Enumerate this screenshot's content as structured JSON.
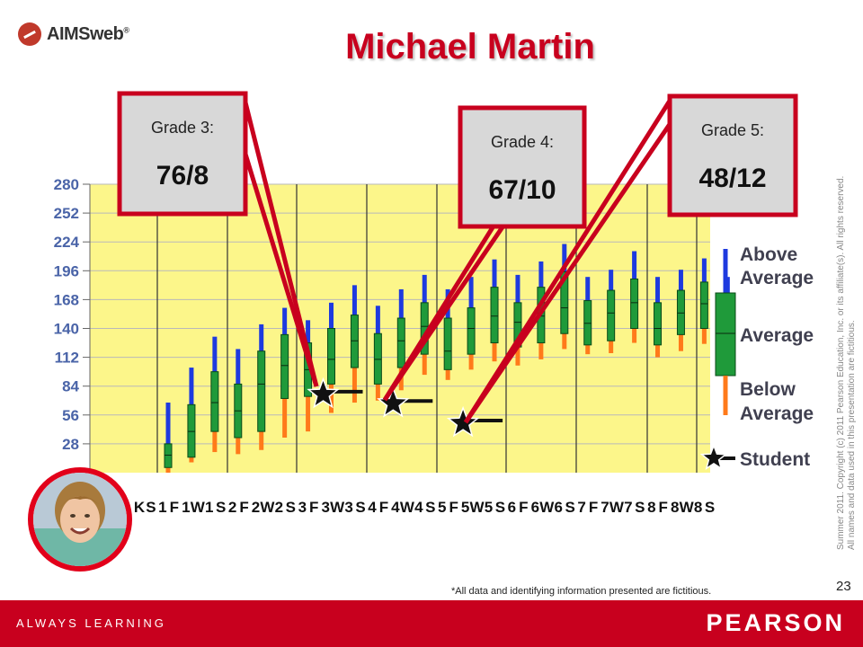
{
  "logo": {
    "text": "AIMSweb",
    "mark": "registered"
  },
  "title": "Michael Martin",
  "copyright": [
    "Summer 2011.  Copyright (c) 2011 Pearson Education, Inc. or its affiliate(s).  All rights reserved.",
    "All names and data used in this presentation are fictitious."
  ],
  "footer_note": "*All data and identifying information presented are fictitious.",
  "page_number": "23",
  "bottom_bar": {
    "tagline": "ALWAYS LEARNING",
    "brand": "PEARSON"
  },
  "callouts": [
    {
      "label": "Grade 3:",
      "value": "76/8"
    },
    {
      "label": "Grade 4:",
      "value": "67/10"
    },
    {
      "label": "Grade 5:",
      "value": "48/12"
    }
  ],
  "legend": {
    "above": "Above Average",
    "average": "Average",
    "below": "Below Average",
    "student": "Student"
  },
  "colors": {
    "above": "#1e3adf",
    "average": "#1f9a3a",
    "below": "#ff7a1a",
    "plot_bg": "#fcf68a",
    "accent": "#c8001e"
  },
  "chart_data": {
    "type": "box",
    "ylim": [
      0,
      280
    ],
    "yticks": [
      0,
      28,
      56,
      84,
      112,
      140,
      168,
      196,
      224,
      252,
      280
    ],
    "categories": [
      "K",
      "S",
      "1",
      "F",
      "1",
      "W",
      "1",
      "S",
      "2",
      "F",
      "2",
      "W",
      "2",
      "S",
      "3",
      "F",
      "3",
      "W",
      "3",
      "S",
      "4",
      "F",
      "4",
      "W",
      "4",
      "S",
      "5",
      "F",
      "5",
      "W",
      "5",
      "S",
      "6",
      "F",
      "6",
      "W",
      "6",
      "S",
      "7",
      "F",
      "7",
      "W",
      "7",
      "S",
      "8",
      "F",
      "8",
      "W",
      "8",
      "S"
    ],
    "periods": [
      "KS",
      "1F",
      "1W",
      "1S",
      "2F",
      "2W",
      "2S",
      "3F",
      "3W",
      "3S",
      "4F",
      "4W",
      "4S",
      "5F",
      "5W",
      "5S",
      "6F",
      "6W",
      "6S",
      "7F",
      "7W",
      "7S",
      "8F",
      "8W",
      "8S"
    ],
    "series": [
      {
        "period": "KS",
        "low": 0,
        "q1": 5,
        "median": 17,
        "q3": 28,
        "high": 68
      },
      {
        "period": "1F",
        "low": 10,
        "q1": 15,
        "median": 40,
        "q3": 66,
        "high": 102
      },
      {
        "period": "1W",
        "low": 20,
        "q1": 40,
        "median": 68,
        "q3": 98,
        "high": 132
      },
      {
        "period": "1S",
        "low": 18,
        "q1": 34,
        "median": 60,
        "q3": 86,
        "high": 120
      },
      {
        "period": "2F",
        "low": 22,
        "q1": 40,
        "median": 86,
        "q3": 118,
        "high": 144
      },
      {
        "period": "2W",
        "low": 34,
        "q1": 72,
        "median": 104,
        "q3": 134,
        "high": 160
      },
      {
        "period": "2S",
        "low": 40,
        "q1": 74,
        "median": 100,
        "q3": 126,
        "high": 148
      },
      {
        "period": "3F",
        "low": 58,
        "q1": 86,
        "median": 110,
        "q3": 140,
        "high": 165
      },
      {
        "period": "3W",
        "low": 68,
        "q1": 102,
        "median": 128,
        "q3": 153,
        "high": 182
      },
      {
        "period": "3S",
        "low": 70,
        "q1": 86,
        "median": 110,
        "q3": 135,
        "high": 162
      },
      {
        "period": "4F",
        "low": 80,
        "q1": 102,
        "median": 128,
        "q3": 150,
        "high": 178
      },
      {
        "period": "4W",
        "low": 95,
        "q1": 115,
        "median": 142,
        "q3": 165,
        "high": 192
      },
      {
        "period": "4S",
        "low": 90,
        "q1": 100,
        "median": 118,
        "q3": 150,
        "high": 178
      },
      {
        "period": "5F",
        "low": 100,
        "q1": 115,
        "median": 140,
        "q3": 160,
        "high": 190
      },
      {
        "period": "5W",
        "low": 108,
        "q1": 126,
        "median": 152,
        "q3": 180,
        "high": 207
      },
      {
        "period": "5S",
        "low": 104,
        "q1": 122,
        "median": 146,
        "q3": 165,
        "high": 192
      },
      {
        "period": "6F",
        "low": 110,
        "q1": 126,
        "median": 152,
        "q3": 180,
        "high": 205
      },
      {
        "period": "6W",
        "low": 120,
        "q1": 135,
        "median": 160,
        "q3": 195,
        "high": 222
      },
      {
        "period": "6S",
        "low": 115,
        "q1": 124,
        "median": 145,
        "q3": 167,
        "high": 190
      },
      {
        "period": "7F",
        "low": 116,
        "q1": 128,
        "median": 155,
        "q3": 177,
        "high": 197
      },
      {
        "period": "7W",
        "low": 126,
        "q1": 140,
        "median": 165,
        "q3": 188,
        "high": 215
      },
      {
        "period": "7S",
        "low": 112,
        "q1": 124,
        "median": 140,
        "q3": 165,
        "high": 190
      },
      {
        "period": "8F",
        "low": 118,
        "q1": 134,
        "median": 155,
        "q3": 177,
        "high": 197
      },
      {
        "period": "8W",
        "low": 125,
        "q1": 140,
        "median": 164,
        "q3": 185,
        "high": 208
      },
      {
        "period": "8S",
        "low": 112,
        "q1": 124,
        "median": 140,
        "q3": 165,
        "high": 190
      }
    ],
    "student": [
      {
        "period": "3F",
        "value": 76,
        "errors": 8
      },
      {
        "period": "4F",
        "value": 67,
        "errors": 10
      },
      {
        "period": "5F",
        "value": 48,
        "errors": 12
      }
    ]
  }
}
